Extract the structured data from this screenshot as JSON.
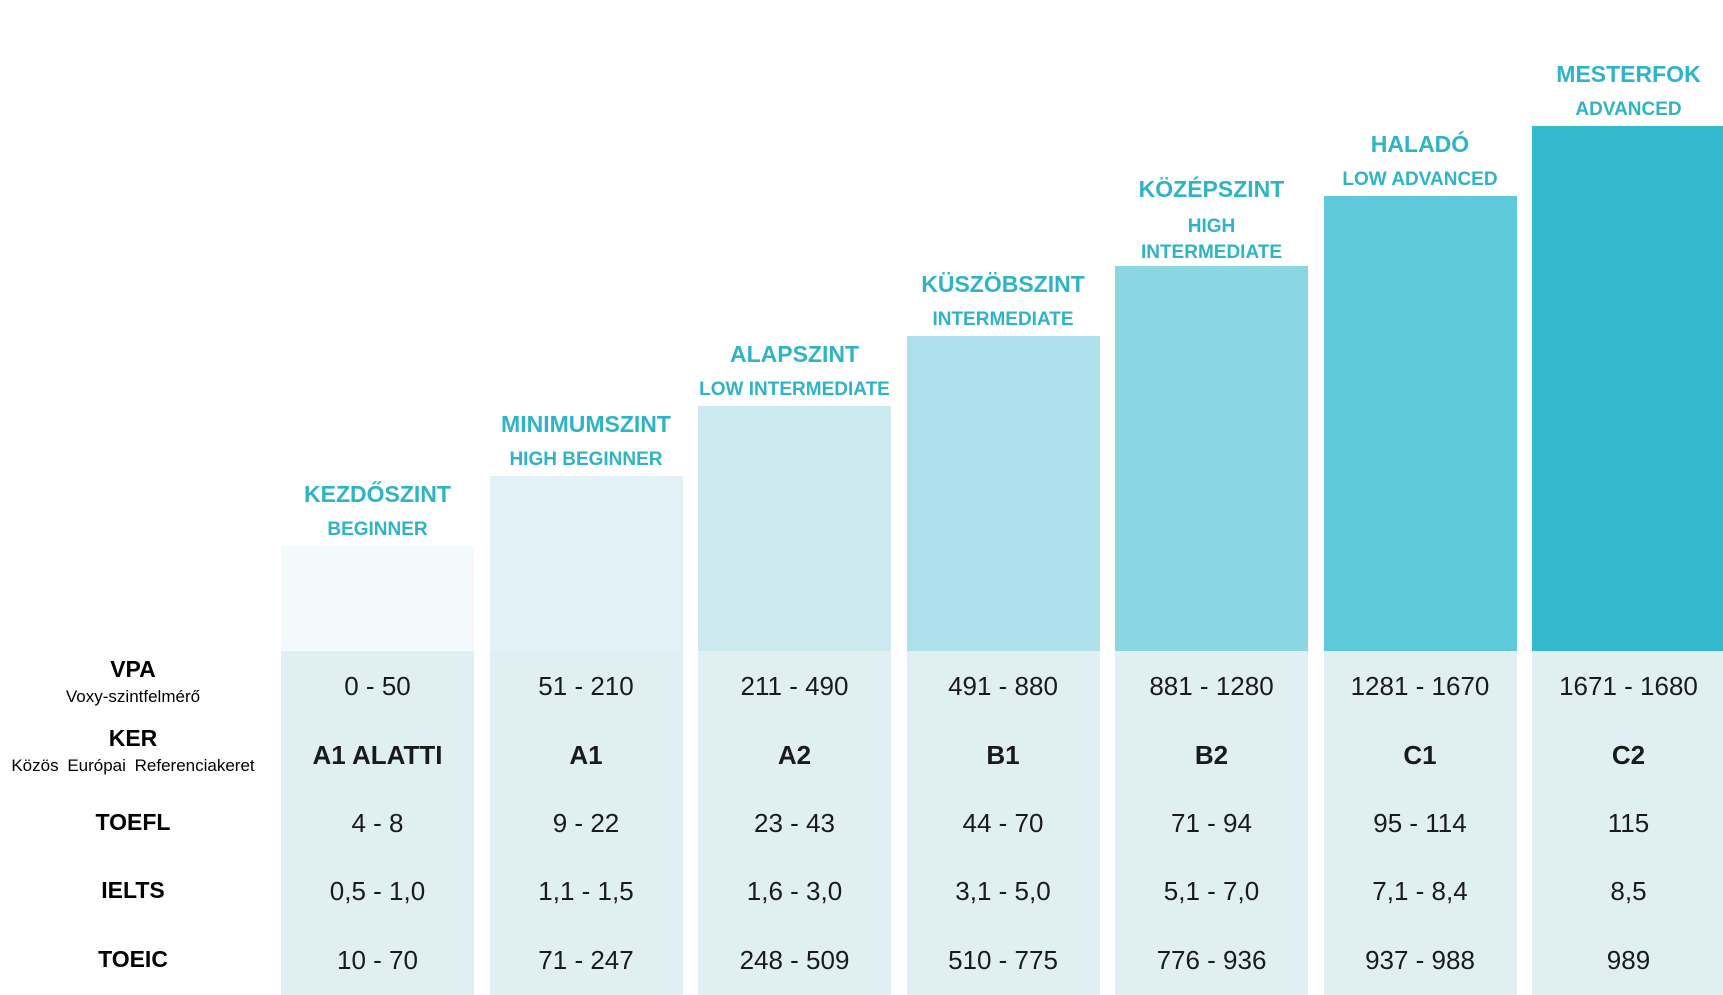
{
  "chart_data": {
    "type": "bar",
    "categories": [
      "A1 ALATTI",
      "A1",
      "A2",
      "B1",
      "B2",
      "C1",
      "C2"
    ],
    "levels": [
      {
        "title": "KEZDŐSZINT",
        "subtitle": "BEGINNER",
        "kind": 1,
        "color": "#f4fafc"
      },
      {
        "title": "MINIMUMSZINT",
        "subtitle": "HIGH BEGINNER",
        "kind": 2,
        "color": "#e1f1f6"
      },
      {
        "title": "ALAPSZINT",
        "subtitle": "LOW INTERMEDIATE",
        "kind": 3,
        "color": "#cce9f0"
      },
      {
        "title": "KÜSZÖBSZINT",
        "subtitle": "INTERMEDIATE",
        "kind": 4,
        "color": "#ade0ea"
      },
      {
        "title": "KÖZÉPSZINT",
        "subtitle": "HIGH INTERMEDIATE",
        "kind": 5,
        "color": "#8ad6e2"
      },
      {
        "title": "HALADÓ",
        "subtitle": "LOW ADVANCED",
        "kind": 6,
        "color": "#5ecad9"
      },
      {
        "title": "MESTERFOK",
        "subtitle": "ADVANCED",
        "kind": 7,
        "color": "#33b9cc"
      }
    ],
    "rows": [
      {
        "label": "VPA",
        "sublabel": "Voxy-szintfelmérő",
        "bold": false,
        "values": [
          "0 - 50",
          "51 - 210",
          "211 - 490",
          "491 - 880",
          "881 - 1280",
          "1281 - 1670",
          "1671 - 1680"
        ]
      },
      {
        "label": "KER",
        "sublabel": "Közös Európai Referenciakeret",
        "bold": true,
        "values": [
          "A1 ALATTI",
          "A1",
          "A2",
          "B1",
          "B2",
          "C1",
          "C2"
        ]
      },
      {
        "label": "TOEFL",
        "sublabel": "",
        "bold": false,
        "values": [
          "4 - 8",
          "9 - 22",
          "23 - 43",
          "44 - 70",
          "71 - 94",
          "95 - 114",
          "115"
        ]
      },
      {
        "label": "IELTS",
        "sublabel": "",
        "bold": false,
        "values": [
          "0,5 - 1,0",
          "1,1 - 1,5",
          "1,6 - 3,0",
          "3,1 - 5,0",
          "5,1 - 7,0",
          "7,1 - 8,4",
          "8,5"
        ]
      },
      {
        "label": "TOEIC",
        "sublabel": "",
        "bold": false,
        "values": [
          "10 - 70",
          "71 - 247",
          "248 - 509",
          "510 - 775",
          "776 - 936",
          "937 - 988",
          "989"
        ]
      }
    ],
    "accent_color": "#2fb3c6",
    "cell_color": "#e0eff2"
  }
}
